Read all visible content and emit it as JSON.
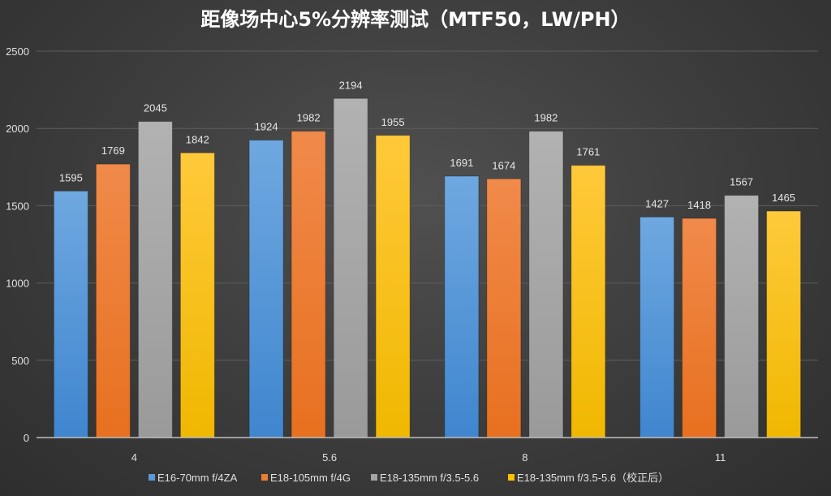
{
  "chart_data": {
    "type": "bar",
    "title": "距像场中心5%分辨率测试（MTF50，LW/PH）",
    "xlabel": "",
    "ylabel": "",
    "categories": [
      "4",
      "5.6",
      "8",
      "11"
    ],
    "ylim": [
      0,
      2500
    ],
    "yticks": [
      0,
      500,
      1000,
      1500,
      2000,
      2500
    ],
    "ytick_labels": [
      "0",
      "500",
      "1000",
      "1500",
      "2000",
      "2500"
    ],
    "grid": true,
    "legend_position": "bottom",
    "series": [
      {
        "name": "E16-70mm f/4ZA",
        "color": "#5b9bd5",
        "values": [
          1595,
          1924,
          1691,
          1427
        ]
      },
      {
        "name": "E18-105mm f/4G",
        "color": "#ed7d31",
        "values": [
          1769,
          1982,
          1674,
          1418
        ]
      },
      {
        "name": "E18-135mm f/3.5-5.6",
        "color": "#a5a5a5",
        "values": [
          2045,
          2194,
          1982,
          1567
        ]
      },
      {
        "name": "E18-135mm f/3.5-5.6（校正后）",
        "color": "#ffc000",
        "values": [
          1842,
          1955,
          1761,
          1465
        ]
      }
    ]
  }
}
